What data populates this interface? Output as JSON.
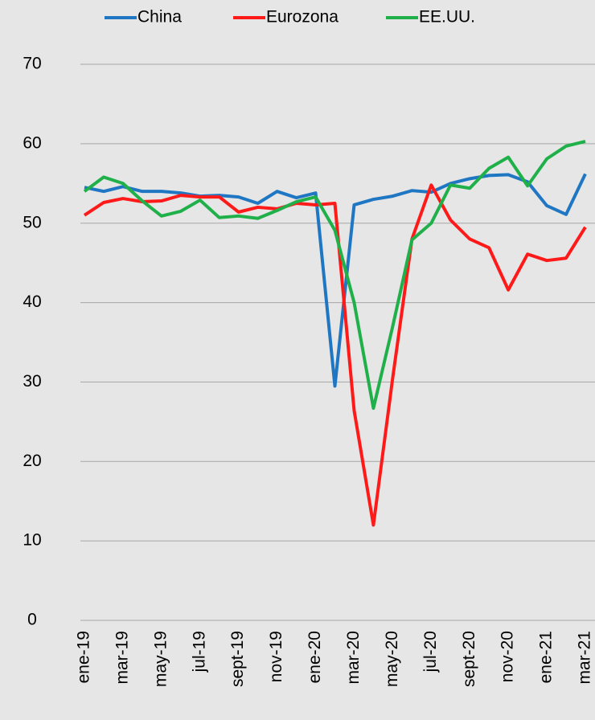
{
  "chart_data": {
    "type": "line",
    "categories": [
      "ene-19",
      null,
      "mar-19",
      null,
      "may-19",
      null,
      "jul-19",
      null,
      "sept-19",
      null,
      "nov-19",
      null,
      "ene-20",
      null,
      "mar-20",
      null,
      "may-20",
      null,
      "jul-20",
      null,
      "sept-20",
      null,
      "nov-20",
      null,
      "ene-21",
      null,
      "mar-21"
    ],
    "series": [
      {
        "name": "China",
        "color": "#1f77c4",
        "values": [
          54.5,
          54.0,
          54.6,
          54.0,
          54.0,
          53.8,
          53.4,
          53.5,
          53.3,
          52.5,
          54.0,
          53.2,
          53.8,
          29.5,
          52.3,
          53.0,
          53.4,
          54.1,
          53.9,
          55.0,
          55.6,
          56.0,
          56.1,
          55.2,
          52.2,
          51.1,
          56.2
        ]
      },
      {
        "name": "Eurozona",
        "color": "#ff1a1a",
        "values": [
          51.0,
          52.6,
          53.1,
          52.7,
          52.8,
          53.5,
          53.3,
          53.3,
          51.4,
          52.0,
          51.8,
          52.5,
          52.3,
          52.5,
          26.4,
          12.0,
          30.5,
          48.0,
          54.8,
          50.4,
          48.0,
          46.9,
          41.6,
          46.1,
          45.3,
          45.6,
          49.5
        ]
      },
      {
        "name": "EE.UU.",
        "color": "#1fb04a",
        "values": [
          54.0,
          55.8,
          55.0,
          52.8,
          50.9,
          51.5,
          52.9,
          50.7,
          50.9,
          50.6,
          51.6,
          52.7,
          53.3,
          49.1,
          40.0,
          26.7,
          37.0,
          47.9,
          50.0,
          54.8,
          54.4,
          56.9,
          58.3,
          54.7,
          58.1,
          59.7,
          60.3
        ]
      }
    ],
    "ylim": [
      0,
      70
    ],
    "yticks": [
      0,
      10,
      20,
      30,
      40,
      50,
      60,
      70
    ],
    "grid": true
  }
}
